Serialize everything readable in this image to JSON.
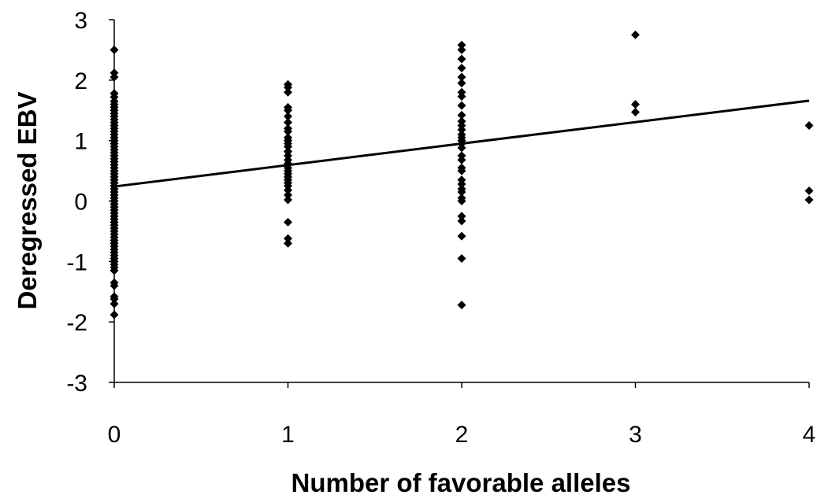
{
  "chart_data": {
    "type": "scatter",
    "xlabel": "Number of favorable alleles",
    "ylabel": "Deregressed EBV",
    "xlim": [
      0,
      4
    ],
    "ylim": [
      -3,
      3
    ],
    "xticks": [
      0,
      1,
      2,
      3,
      4
    ],
    "yticks": [
      -3,
      -2,
      -1,
      0,
      1,
      2,
      3
    ],
    "grid": false,
    "marker": "diamond",
    "color": "#000000",
    "points": [
      {
        "x": 0,
        "y": 2.5
      },
      {
        "x": 0,
        "y": 2.12
      },
      {
        "x": 0,
        "y": 2.05
      },
      {
        "x": 0,
        "y": 1.78
      },
      {
        "x": 0,
        "y": 1.72
      },
      {
        "x": 0,
        "y": 1.65
      },
      {
        "x": 0,
        "y": 1.6
      },
      {
        "x": 0,
        "y": 1.55
      },
      {
        "x": 0,
        "y": 1.5
      },
      {
        "x": 0,
        "y": 1.45
      },
      {
        "x": 0,
        "y": 1.4
      },
      {
        "x": 0,
        "y": 1.35
      },
      {
        "x": 0,
        "y": 1.3
      },
      {
        "x": 0,
        "y": 1.25
      },
      {
        "x": 0,
        "y": 1.2
      },
      {
        "x": 0,
        "y": 1.15
      },
      {
        "x": 0,
        "y": 1.1
      },
      {
        "x": 0,
        "y": 1.05
      },
      {
        "x": 0,
        "y": 1.0
      },
      {
        "x": 0,
        "y": 0.95
      },
      {
        "x": 0,
        "y": 0.9
      },
      {
        "x": 0,
        "y": 0.85
      },
      {
        "x": 0,
        "y": 0.8
      },
      {
        "x": 0,
        "y": 0.75
      },
      {
        "x": 0,
        "y": 0.7
      },
      {
        "x": 0,
        "y": 0.65
      },
      {
        "x": 0,
        "y": 0.6
      },
      {
        "x": 0,
        "y": 0.55
      },
      {
        "x": 0,
        "y": 0.5
      },
      {
        "x": 0,
        "y": 0.45
      },
      {
        "x": 0,
        "y": 0.4
      },
      {
        "x": 0,
        "y": 0.35
      },
      {
        "x": 0,
        "y": 0.3
      },
      {
        "x": 0,
        "y": 0.25
      },
      {
        "x": 0,
        "y": 0.2
      },
      {
        "x": 0,
        "y": 0.15
      },
      {
        "x": 0,
        "y": 0.1
      },
      {
        "x": 0,
        "y": 0.05
      },
      {
        "x": 0,
        "y": 0.0
      },
      {
        "x": 0,
        "y": -0.05
      },
      {
        "x": 0,
        "y": -0.1
      },
      {
        "x": 0,
        "y": -0.15
      },
      {
        "x": 0,
        "y": -0.2
      },
      {
        "x": 0,
        "y": -0.25
      },
      {
        "x": 0,
        "y": -0.3
      },
      {
        "x": 0,
        "y": -0.35
      },
      {
        "x": 0,
        "y": -0.4
      },
      {
        "x": 0,
        "y": -0.45
      },
      {
        "x": 0,
        "y": -0.5
      },
      {
        "x": 0,
        "y": -0.55
      },
      {
        "x": 0,
        "y": -0.6
      },
      {
        "x": 0,
        "y": -0.65
      },
      {
        "x": 0,
        "y": -0.7
      },
      {
        "x": 0,
        "y": -0.75
      },
      {
        "x": 0,
        "y": -0.8
      },
      {
        "x": 0,
        "y": -0.85
      },
      {
        "x": 0,
        "y": -0.9
      },
      {
        "x": 0,
        "y": -0.95
      },
      {
        "x": 0,
        "y": -1.0
      },
      {
        "x": 0,
        "y": -1.05
      },
      {
        "x": 0,
        "y": -1.1
      },
      {
        "x": 0,
        "y": -1.15
      },
      {
        "x": 0,
        "y": -1.35
      },
      {
        "x": 0,
        "y": -1.4
      },
      {
        "x": 0,
        "y": -1.58
      },
      {
        "x": 0,
        "y": -1.62
      },
      {
        "x": 0,
        "y": -1.7
      },
      {
        "x": 0,
        "y": -1.88
      },
      {
        "x": 1,
        "y": 1.93
      },
      {
        "x": 1,
        "y": 1.88
      },
      {
        "x": 1,
        "y": 1.8
      },
      {
        "x": 1,
        "y": 1.55
      },
      {
        "x": 1,
        "y": 1.5
      },
      {
        "x": 1,
        "y": 1.4
      },
      {
        "x": 1,
        "y": 1.3
      },
      {
        "x": 1,
        "y": 1.2
      },
      {
        "x": 1,
        "y": 1.15
      },
      {
        "x": 1,
        "y": 1.05
      },
      {
        "x": 1,
        "y": 1.0
      },
      {
        "x": 1,
        "y": 0.95
      },
      {
        "x": 1,
        "y": 0.9
      },
      {
        "x": 1,
        "y": 0.82
      },
      {
        "x": 1,
        "y": 0.75
      },
      {
        "x": 1,
        "y": 0.68
      },
      {
        "x": 1,
        "y": 0.62
      },
      {
        "x": 1,
        "y": 0.55
      },
      {
        "x": 1,
        "y": 0.5
      },
      {
        "x": 1,
        "y": 0.45
      },
      {
        "x": 1,
        "y": 0.4
      },
      {
        "x": 1,
        "y": 0.35
      },
      {
        "x": 1,
        "y": 0.3
      },
      {
        "x": 1,
        "y": 0.25
      },
      {
        "x": 1,
        "y": 0.18
      },
      {
        "x": 1,
        "y": 0.1
      },
      {
        "x": 1,
        "y": 0.02
      },
      {
        "x": 1,
        "y": -0.35
      },
      {
        "x": 1,
        "y": -0.62
      },
      {
        "x": 1,
        "y": -0.7
      },
      {
        "x": 2,
        "y": 2.58
      },
      {
        "x": 2,
        "y": 2.5
      },
      {
        "x": 2,
        "y": 2.35
      },
      {
        "x": 2,
        "y": 2.2
      },
      {
        "x": 2,
        "y": 2.05
      },
      {
        "x": 2,
        "y": 1.95
      },
      {
        "x": 2,
        "y": 1.8
      },
      {
        "x": 2,
        "y": 1.73
      },
      {
        "x": 2,
        "y": 1.58
      },
      {
        "x": 2,
        "y": 1.42
      },
      {
        "x": 2,
        "y": 1.32
      },
      {
        "x": 2,
        "y": 1.25
      },
      {
        "x": 2,
        "y": 1.18
      },
      {
        "x": 2,
        "y": 1.1
      },
      {
        "x": 2,
        "y": 1.05
      },
      {
        "x": 2,
        "y": 1.0
      },
      {
        "x": 2,
        "y": 0.95
      },
      {
        "x": 2,
        "y": 0.88
      },
      {
        "x": 2,
        "y": 0.75
      },
      {
        "x": 2,
        "y": 0.68
      },
      {
        "x": 2,
        "y": 0.55
      },
      {
        "x": 2,
        "y": 0.5
      },
      {
        "x": 2,
        "y": 0.35
      },
      {
        "x": 2,
        "y": 0.28
      },
      {
        "x": 2,
        "y": 0.2
      },
      {
        "x": 2,
        "y": 0.15
      },
      {
        "x": 2,
        "y": 0.05
      },
      {
        "x": 2,
        "y": 0.0
      },
      {
        "x": 2,
        "y": -0.25
      },
      {
        "x": 2,
        "y": -0.33
      },
      {
        "x": 2,
        "y": -0.58
      },
      {
        "x": 2,
        "y": -0.95
      },
      {
        "x": 2,
        "y": -1.72
      },
      {
        "x": 3,
        "y": 2.75
      },
      {
        "x": 3,
        "y": 1.6
      },
      {
        "x": 3,
        "y": 1.47
      },
      {
        "x": 4,
        "y": 1.25
      },
      {
        "x": 4,
        "y": 0.17
      },
      {
        "x": 4,
        "y": 0.02
      }
    ],
    "trendline": {
      "type": "linear",
      "x": [
        0,
        4
      ],
      "y": [
        0.24,
        1.66
      ]
    }
  }
}
